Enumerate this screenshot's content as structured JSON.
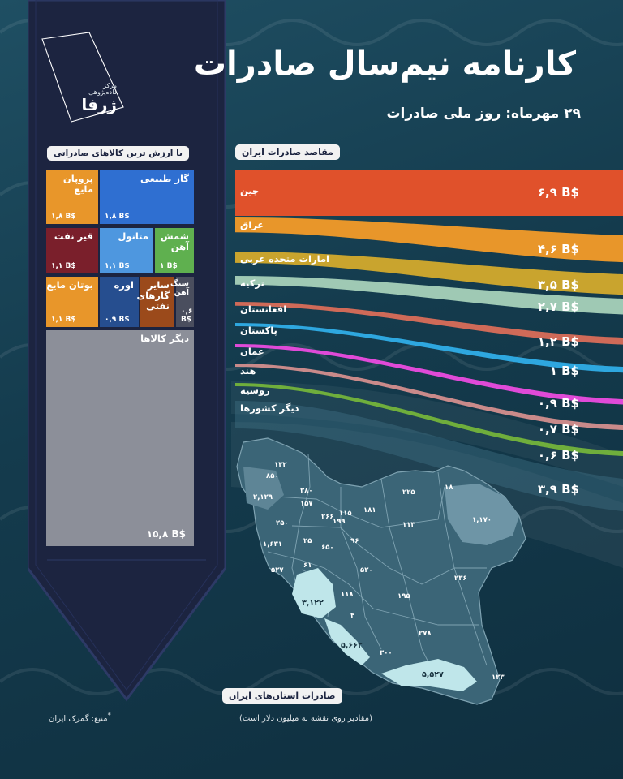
{
  "header": {
    "title": "کارنامه نیم‌سال صادرات",
    "subtitle": "۲۹ مهرماه: روز ملی صادرات"
  },
  "brand": {
    "line1": "مرکز",
    "line2": "داده‌پژوهی",
    "name": "ژرفا"
  },
  "colors": {
    "panel": "#1c2440",
    "background": "#163f52"
  },
  "goods": {
    "label": "با ارزش ترین کالاهای صادراتی",
    "items": [
      {
        "name": "گاز طبیعی",
        "value": "۱,۸ B$",
        "color": "#2f6fd1"
      },
      {
        "name": "پروپان مایع",
        "value": "۱,۸ B$",
        "color": "#e8962a"
      },
      {
        "name": "قیر نفت",
        "value": "۱,۱ B$",
        "color": "#7a1f2b"
      },
      {
        "name": "متانول",
        "value": "۱,۱ B$",
        "color": "#4e97df"
      },
      {
        "name": "شمش آهن",
        "value": "۱ B$",
        "color": "#5fb04f"
      },
      {
        "name": "بوتان مایع",
        "value": "۱,۱ B$",
        "color": "#e8962a"
      },
      {
        "name": "اوره",
        "value": "۰,۹ B$",
        "color": "#264e8f"
      },
      {
        "name": "سایر گازهای نفتی",
        "value": "",
        "color": "#9b4a1b"
      },
      {
        "name": "سنگ آهن",
        "value": "۰,۶ B$",
        "color": "#4a4e5e"
      },
      {
        "name": "دیگر کالاها",
        "value": "۱۵,۸ B$",
        "color": "#8c8f99"
      }
    ]
  },
  "chart_data": [
    {
      "type": "bar",
      "title": "مقاصد صادرات ایران",
      "unit": "B$",
      "categories": [
        "چین",
        "عراق",
        "امارات متحده عربی",
        "ترکیه",
        "افغانستان",
        "پاکستان",
        "عمان",
        "هند",
        "روسیه",
        "دیگر کشورها"
      ],
      "values": [
        6.9,
        4.6,
        3.5,
        2.7,
        1.2,
        1,
        0.9,
        0.7,
        0.6,
        3.9
      ],
      "value_labels": [
        "۶,۹ B$",
        "۴,۶ B$",
        "۳,۵ B$",
        "۲,۷ B$",
        "۱,۲ B$",
        "۱ B$",
        "۰,۹ B$",
        "۰,۷ B$",
        "۰,۶ B$",
        "۳,۹ B$"
      ],
      "colors": [
        "#e0512b",
        "#e8962a",
        "#c9a42e",
        "#9fc9b4",
        "#cf6a58",
        "#2ea7df",
        "#e04ad8",
        "#c98a8a",
        "#6fae3c",
        "#3d6f82"
      ]
    },
    {
      "type": "map",
      "title": "صادرات استان‌های ایران",
      "note": "(مقادیر روی نقشه به میلیون دلار است)",
      "labels": [
        "۱۳۲",
        "۸۵۰",
        "۲,۱۲۹",
        "۳۸۰",
        "۱۵۷",
        "۲۶۶",
        "۱۱۵",
        "۱۸۱",
        "۲۲۵",
        "۱۸",
        "۲۵۰",
        "۱۹۹",
        "۹۶",
        "۱۱۳",
        "۱,۱۷۰",
        "۱,۶۳۱",
        "۲۵",
        "۶۵۰",
        "۵۲۷",
        "۶۱",
        "۵۲۰",
        "۲۳۶",
        "۱۱۸",
        "۱۹۵",
        "۳,۱۲۲",
        "۴",
        "۲۷۸",
        "۵,۶۶۲",
        "۳۰۰",
        "۵,۵۲۷",
        "۱۲۳"
      ]
    }
  ],
  "source": "منبع: گمرک ایران"
}
